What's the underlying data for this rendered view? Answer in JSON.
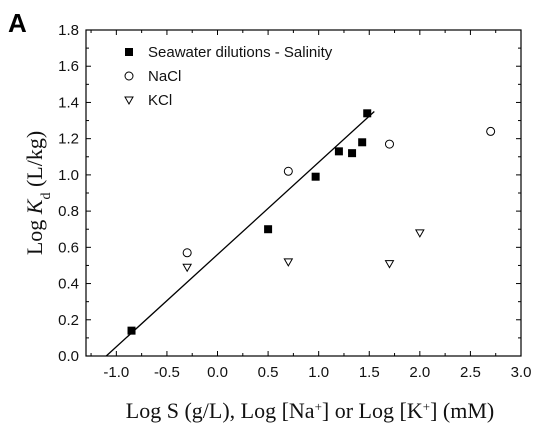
{
  "chart_data": {
    "type": "scatter",
    "panel_label": "A",
    "xlabel": "Log S (g/L), Log [Na+] or Log [K+] (mM)",
    "xlabel_parts": {
      "pre": "Log S (g/L), Log [Na",
      "sup1": "+",
      "mid": "] or Log [K",
      "sup2": "+",
      "post": "] (mM)"
    },
    "ylabel": "Log Kd (L/kg)",
    "ylabel_parts": {
      "pre": "Log ",
      "k": "K",
      "sub": "d",
      "post": " (L/kg)"
    },
    "xlim": [
      -1.3,
      3.0
    ],
    "ylim": [
      0.0,
      1.8
    ],
    "xticks": [
      "-1.0",
      "-0.5",
      "0.0",
      "0.5",
      "1.0",
      "1.5",
      "2.0",
      "2.5",
      "3.0"
    ],
    "xtick_values": [
      -1.0,
      -0.5,
      0.0,
      0.5,
      1.0,
      1.5,
      2.0,
      2.5,
      3.0
    ],
    "yticks": [
      "0.0",
      "0.2",
      "0.4",
      "0.6",
      "0.8",
      "1.0",
      "1.2",
      "1.4",
      "1.6",
      "1.8"
    ],
    "ytick_values": [
      0.0,
      0.2,
      0.4,
      0.6,
      0.8,
      1.0,
      1.2,
      1.4,
      1.6,
      1.8
    ],
    "grid": false,
    "legend_position": "top-left",
    "series": [
      {
        "name": "Seawater dilutions - Salinity",
        "marker": "filled-square",
        "color": "#000000",
        "x": [
          -0.85,
          0.5,
          0.97,
          1.2,
          1.33,
          1.43,
          1.48
        ],
        "y": [
          0.14,
          0.7,
          0.99,
          1.13,
          1.12,
          1.18,
          1.34
        ]
      },
      {
        "name": "NaCl",
        "marker": "open-circle",
        "color": "#000000",
        "x": [
          -0.3,
          0.7,
          1.7,
          2.7
        ],
        "y": [
          0.57,
          1.02,
          1.17,
          1.24
        ]
      },
      {
        "name": "KCl",
        "marker": "open-triangle-down",
        "color": "#000000",
        "x": [
          -0.3,
          0.7,
          1.7,
          2.0
        ],
        "y": [
          0.49,
          0.52,
          0.51,
          0.68
        ]
      }
    ],
    "fit_line": {
      "x": [
        -1.1,
        1.55
      ],
      "y": [
        0.0,
        1.35
      ]
    }
  }
}
